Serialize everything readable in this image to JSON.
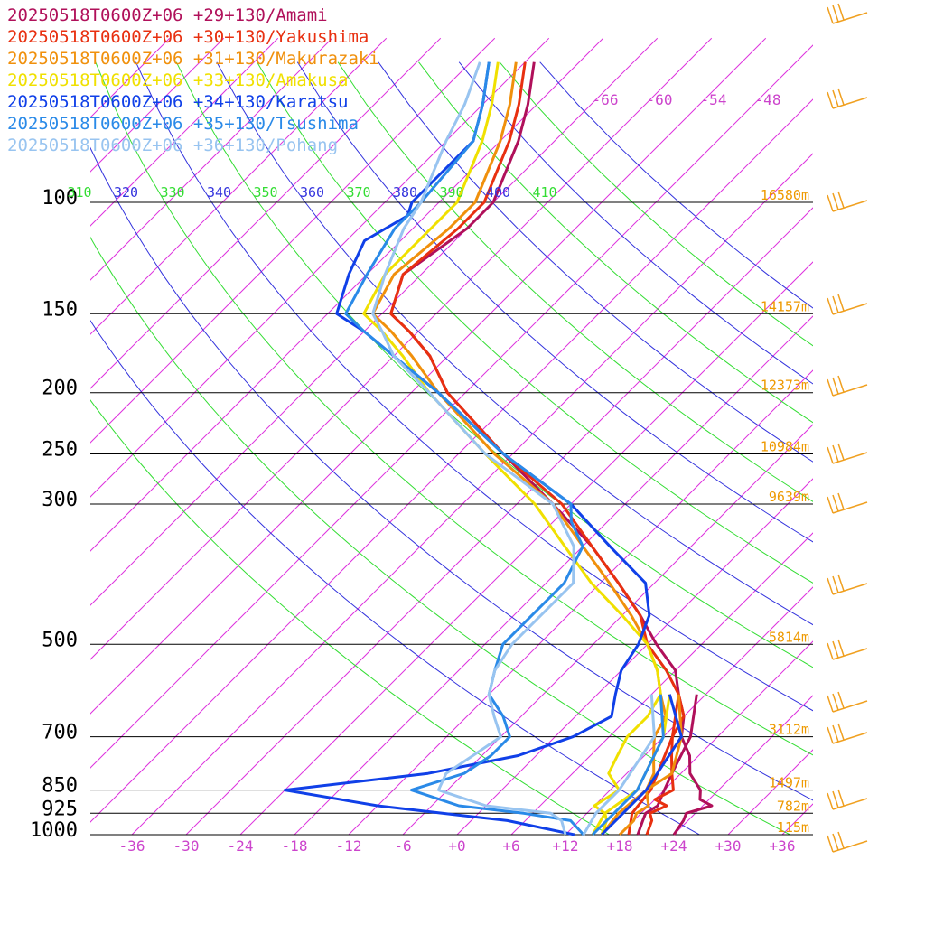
{
  "chart_data": {
    "type": "line",
    "title": "",
    "xlabel": "",
    "ylabel": "",
    "y_scale": "log-pressure",
    "xlim": [
      -40,
      40
    ],
    "ylim": [
      1000,
      100
    ],
    "temperature_ticks": [
      "-36",
      "-30",
      "-24",
      "-18",
      "-12",
      "-6",
      "+0",
      "+6",
      "+12",
      "+18",
      "+24",
      "+30",
      "+36"
    ],
    "temperature_tick_values": [
      -36,
      -30,
      -24,
      -18,
      -12,
      -6,
      0,
      6,
      12,
      18,
      24,
      30,
      36
    ],
    "pressure_levels": [
      {
        "p": 100,
        "label": "100",
        "height": "16580m"
      },
      {
        "p": 150,
        "label": "150",
        "height": "14157m"
      },
      {
        "p": 200,
        "label": "200",
        "height": "12373m"
      },
      {
        "p": 250,
        "label": "250",
        "height": "10984m"
      },
      {
        "p": 300,
        "label": "300",
        "height": "9639m"
      },
      {
        "p": 500,
        "label": "500",
        "height": "5814m"
      },
      {
        "p": 700,
        "label": "700",
        "height": "3112m"
      },
      {
        "p": 850,
        "label": "850",
        "height": "1497m"
      },
      {
        "p": 925,
        "label": "925",
        "height": "782m"
      },
      {
        "p": 1000,
        "label": "1000",
        "height": "115m"
      }
    ],
    "upper_temperature_labels": [
      "-66",
      "-60",
      "-54",
      "-48"
    ],
    "theta_labels": [
      "310",
      "320",
      "330",
      "340",
      "350",
      "360",
      "370",
      "380",
      "390",
      "400",
      "410"
    ],
    "colors": {
      "isotherm": "#dd33dd",
      "adiabat_green": "#33dd33",
      "adiabat_blue": "#3333dd",
      "height_label": "#ee9900",
      "wind": "#f0a020",
      "tick_label": "#cc44cc"
    },
    "series": [
      {
        "name": "20250518T0600Z+06 +29+130/Amami",
        "color": "#b0105a",
        "temp": [
          [
            1000,
            24
          ],
          [
            950,
            23.5
          ],
          [
            925,
            23
          ],
          [
            900,
            25
          ],
          [
            880,
            23
          ],
          [
            850,
            22
          ],
          [
            800,
            19
          ],
          [
            750,
            17
          ],
          [
            700,
            14
          ],
          [
            650,
            12
          ],
          [
            600,
            9
          ],
          [
            550,
            6
          ],
          [
            500,
            1
          ],
          [
            450,
            -4
          ],
          [
            400,
            -10
          ],
          [
            350,
            -17
          ],
          [
            300,
            -26
          ],
          [
            250,
            -37
          ],
          [
            200,
            -50
          ],
          [
            175,
            -56
          ],
          [
            160,
            -61
          ],
          [
            150,
            -65
          ],
          [
            130,
            -68
          ],
          [
            110,
            -66
          ],
          [
            100,
            -66
          ],
          [
            80,
            -70
          ],
          [
            70,
            -73
          ],
          [
            60,
            -77
          ]
        ],
        "dew": [
          [
            1000,
            20
          ],
          [
            950,
            19
          ],
          [
            925,
            18.5
          ],
          [
            900,
            19
          ],
          [
            850,
            18
          ],
          [
            800,
            17
          ],
          [
            700,
            15
          ],
          [
            600,
            11
          ]
        ]
      },
      {
        "name": "20250518T0600Z+06 +30+130/Yakushima",
        "color": "#e83010",
        "temp": [
          [
            1000,
            21
          ],
          [
            950,
            20
          ],
          [
            925,
            19
          ],
          [
            900,
            20
          ],
          [
            880,
            18
          ],
          [
            850,
            19
          ],
          [
            800,
            17
          ],
          [
            750,
            15
          ],
          [
            700,
            13
          ],
          [
            650,
            12
          ],
          [
            600,
            9
          ],
          [
            550,
            5
          ],
          [
            500,
            0
          ],
          [
            450,
            -4
          ],
          [
            400,
            -10
          ],
          [
            350,
            -17
          ],
          [
            300,
            -25
          ],
          [
            250,
            -37
          ],
          [
            200,
            -50
          ],
          [
            175,
            -56
          ],
          [
            160,
            -61
          ],
          [
            150,
            -65
          ],
          [
            130,
            -68
          ],
          [
            110,
            -67
          ],
          [
            100,
            -67
          ],
          [
            80,
            -71
          ],
          [
            70,
            -74
          ],
          [
            60,
            -78
          ]
        ],
        "dew": [
          [
            1000,
            19
          ],
          [
            925,
            17
          ],
          [
            850,
            16.5
          ],
          [
            700,
            13
          ],
          [
            600,
            9
          ]
        ]
      },
      {
        "name": "20250518T0600Z+06 +31+130/Makurazaki",
        "color": "#f0900c",
        "temp": [
          [
            1000,
            18
          ],
          [
            950,
            18
          ],
          [
            925,
            17.5
          ],
          [
            900,
            18
          ],
          [
            850,
            16
          ],
          [
            800,
            15
          ],
          [
            750,
            13
          ],
          [
            700,
            11
          ],
          [
            650,
            10
          ],
          [
            600,
            7
          ],
          [
            550,
            4
          ],
          [
            500,
            0
          ],
          [
            450,
            -5
          ],
          [
            400,
            -11
          ],
          [
            350,
            -18
          ],
          [
            300,
            -26
          ],
          [
            250,
            -38
          ],
          [
            200,
            -51
          ],
          [
            175,
            -58
          ],
          [
            160,
            -63
          ],
          [
            150,
            -67
          ],
          [
            130,
            -69
          ],
          [
            110,
            -68
          ],
          [
            100,
            -68
          ],
          [
            80,
            -72
          ],
          [
            70,
            -75
          ],
          [
            60,
            -79
          ]
        ],
        "dew": [
          [
            1000,
            16
          ],
          [
            925,
            15.5
          ],
          [
            850,
            16
          ],
          [
            800,
            17
          ],
          [
            700,
            14
          ],
          [
            600,
            9
          ]
        ]
      },
      {
        "name": "20250518T0600Z+06 +33+130/Amakusa",
        "color": "#f0e000",
        "temp": [
          [
            1000,
            16
          ],
          [
            950,
            15
          ],
          [
            925,
            14
          ],
          [
            900,
            12
          ],
          [
            850,
            13
          ],
          [
            800,
            10
          ],
          [
            750,
            9
          ],
          [
            700,
            8
          ],
          [
            650,
            8
          ],
          [
            600,
            7
          ],
          [
            550,
            4
          ],
          [
            500,
            0
          ],
          [
            450,
            -6
          ],
          [
            400,
            -13
          ],
          [
            350,
            -20
          ],
          [
            300,
            -28
          ],
          [
            250,
            -39
          ],
          [
            200,
            -52
          ],
          [
            175,
            -59
          ],
          [
            160,
            -64
          ],
          [
            150,
            -68
          ],
          [
            130,
            -70
          ],
          [
            110,
            -70
          ],
          [
            100,
            -70
          ],
          [
            80,
            -74
          ],
          [
            70,
            -77
          ],
          [
            60,
            -81
          ]
        ],
        "dew": [
          [
            1000,
            15
          ],
          [
            925,
            14
          ],
          [
            850,
            15
          ],
          [
            700,
            12
          ],
          [
            600,
            8
          ]
        ]
      },
      {
        "name": "20250518T0600Z+06 +34+130/Karatsu",
        "color": "#1040e8",
        "temp": [
          [
            1000,
            13
          ],
          [
            950,
            4
          ],
          [
            925,
            -4
          ],
          [
            900,
            -12
          ],
          [
            850,
            -24
          ],
          [
            800,
            -10
          ],
          [
            750,
            -2
          ],
          [
            700,
            2
          ],
          [
            650,
            4
          ],
          [
            600,
            2
          ],
          [
            550,
            0
          ],
          [
            500,
            -1
          ],
          [
            450,
            -3
          ],
          [
            400,
            -7
          ],
          [
            350,
            -15
          ],
          [
            300,
            -24
          ],
          [
            250,
            -37
          ],
          [
            200,
            -51
          ],
          [
            175,
            -60
          ],
          [
            160,
            -66
          ],
          [
            150,
            -71
          ],
          [
            130,
            -74
          ],
          [
            115,
            -76
          ],
          [
            105,
            -74
          ],
          [
            100,
            -75
          ],
          [
            80,
            -75
          ],
          [
            70,
            -78
          ],
          [
            60,
            -82
          ]
        ],
        "dew": [
          [
            1000,
            16
          ],
          [
            925,
            16
          ],
          [
            850,
            16
          ],
          [
            700,
            14
          ],
          [
            600,
            8
          ]
        ]
      },
      {
        "name": "20250518T0600Z+06 +35+130/Tsushima",
        "color": "#2a8ae8",
        "temp": [
          [
            1000,
            14
          ],
          [
            950,
            11
          ],
          [
            925,
            5
          ],
          [
            900,
            -3
          ],
          [
            850,
            -10
          ],
          [
            800,
            -6
          ],
          [
            750,
            -5
          ],
          [
            700,
            -5
          ],
          [
            650,
            -8
          ],
          [
            600,
            -12
          ],
          [
            550,
            -14
          ],
          [
            500,
            -16
          ],
          [
            450,
            -16
          ],
          [
            400,
            -16
          ],
          [
            350,
            -18
          ],
          [
            320,
            -22
          ],
          [
            300,
            -24
          ],
          [
            250,
            -37
          ],
          [
            200,
            -51
          ],
          [
            175,
            -60
          ],
          [
            160,
            -66
          ],
          [
            150,
            -70
          ],
          [
            130,
            -72
          ],
          [
            110,
            -74
          ],
          [
            100,
            -74
          ],
          [
            80,
            -75
          ],
          [
            70,
            -78
          ],
          [
            60,
            -82
          ]
        ],
        "dew": [
          [
            1000,
            15
          ],
          [
            925,
            15
          ],
          [
            850,
            15
          ],
          [
            700,
            12
          ],
          [
            600,
            7
          ]
        ]
      },
      {
        "name": "20250518T0600Z+06 +36+130/Pohang",
        "color": "#98c4f0",
        "temp": [
          [
            1000,
            12
          ],
          [
            950,
            10
          ],
          [
            925,
            8
          ],
          [
            900,
            0
          ],
          [
            850,
            -7
          ],
          [
            800,
            -8
          ],
          [
            750,
            -7
          ],
          [
            700,
            -6
          ],
          [
            650,
            -9
          ],
          [
            600,
            -12
          ],
          [
            550,
            -14
          ],
          [
            500,
            -15
          ],
          [
            450,
            -15
          ],
          [
            400,
            -15
          ],
          [
            350,
            -19
          ],
          [
            300,
            -26
          ],
          [
            250,
            -39
          ],
          [
            200,
            -52
          ],
          [
            175,
            -60
          ],
          [
            160,
            -64
          ],
          [
            150,
            -67
          ],
          [
            130,
            -70
          ],
          [
            110,
            -73
          ],
          [
            100,
            -74
          ],
          [
            80,
            -78
          ],
          [
            70,
            -80
          ],
          [
            60,
            -83
          ]
        ],
        "dew": [
          [
            1000,
            14
          ],
          [
            925,
            13
          ],
          [
            850,
            13
          ],
          [
            700,
            11
          ],
          [
            600,
            6
          ]
        ]
      }
    ]
  }
}
